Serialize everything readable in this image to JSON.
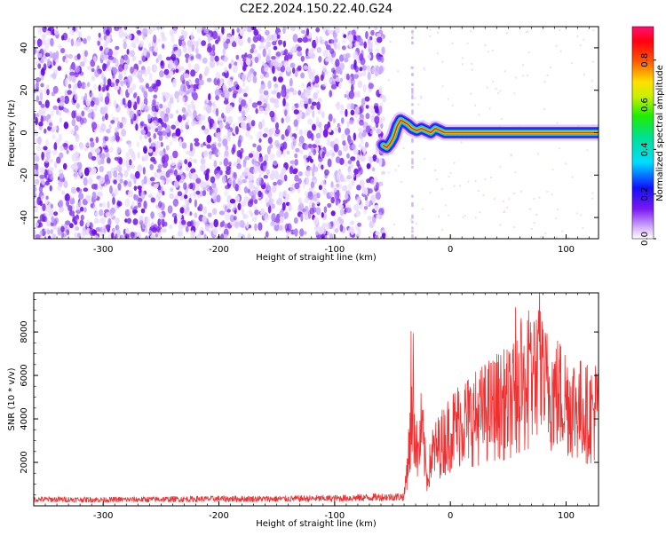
{
  "title": "C2E2.2024.150.22.40.G24",
  "colors": {
    "spectrogram_low": "#d9c2ff",
    "spectrogram_mid": "#7b18f0",
    "snr_line": "#f03030"
  },
  "chart_data": [
    {
      "type": "heatmap",
      "name": "spectrogram",
      "xlabel": "Height of straight line (km)",
      "ylabel": "Frequency (Hz)",
      "xlim": [
        -360,
        128
      ],
      "ylim": [
        -50,
        50
      ],
      "x_ticks": [
        -300,
        -200,
        -100,
        0,
        100
      ],
      "y_ticks": [
        -40,
        -20,
        0,
        20,
        40
      ],
      "grid": false,
      "noise_region_x": [
        -360,
        -57
      ],
      "signal_track": {
        "x": [
          -58,
          -55,
          -52,
          -49,
          -46,
          -43,
          -40,
          -37,
          -33,
          -29,
          -25,
          -21,
          -17,
          -13,
          -9,
          -5,
          -1,
          10,
          30,
          50,
          70,
          90,
          110,
          128
        ],
        "frequency": [
          -6,
          -7,
          -5,
          -2,
          3,
          6,
          5,
          4,
          2,
          1,
          2,
          1,
          0,
          2,
          1,
          0,
          0,
          0,
          0,
          0,
          0,
          0,
          0,
          0
        ]
      },
      "colorbar": {
        "label": "Normalized spectral amplitude",
        "range": [
          0.0,
          0.95
        ],
        "ticks": [
          0.0,
          0.2,
          0.4,
          0.6,
          0.8
        ]
      }
    },
    {
      "type": "line",
      "name": "snr",
      "xlabel": "Height of straight line (km)",
      "ylabel": "SNR (10 * v/v)",
      "xlim": [
        -360,
        128
      ],
      "ylim": [
        0,
        9800
      ],
      "x_ticks": [
        -300,
        -200,
        -100,
        0,
        100
      ],
      "y_ticks": [
        2000,
        4000,
        6000,
        8000
      ],
      "grid": false,
      "series": [
        {
          "x": [
            -360,
            -300,
            -250,
            -200,
            -150,
            -100,
            -60,
            -40,
            -36,
            -32,
            -28,
            -25,
            -20,
            -16,
            -12,
            -6,
            0,
            10,
            20,
            30,
            40,
            50,
            60,
            70,
            75,
            80,
            90,
            100,
            110,
            120,
            128
          ],
          "y": [
            300,
            280,
            300,
            320,
            320,
            340,
            400,
            420,
            2500,
            4200,
            2200,
            3600,
            1200,
            2400,
            2600,
            3000,
            3400,
            3900,
            4000,
            4300,
            4600,
            4700,
            5000,
            5600,
            6400,
            5500,
            5200,
            4900,
            4500,
            4200,
            4500
          ]
        }
      ]
    }
  ]
}
